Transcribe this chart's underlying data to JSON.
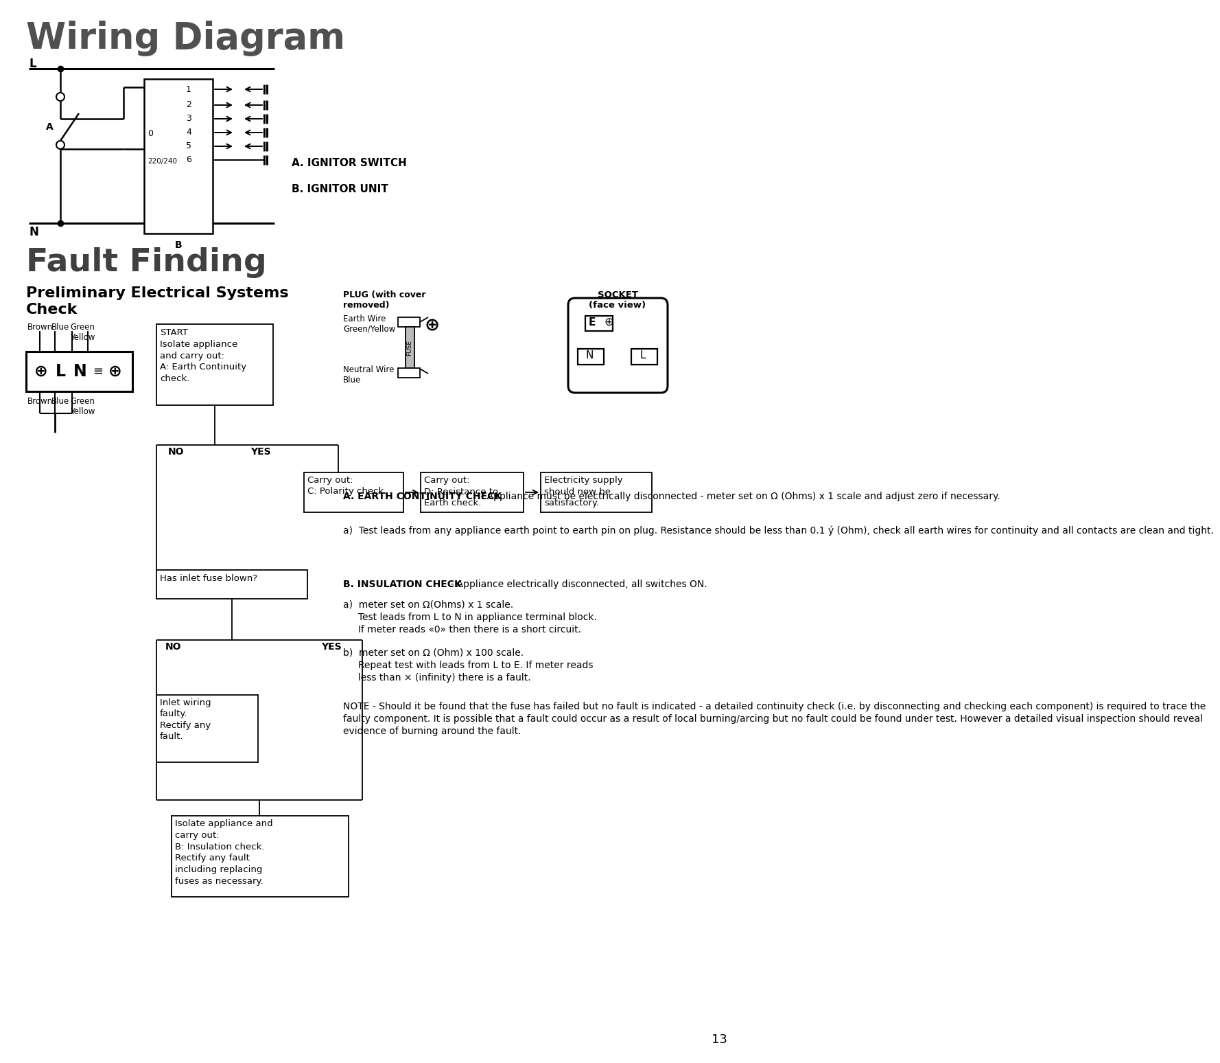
{
  "title_wiring": "Wiring Diagram",
  "title_fault": "Fault Finding",
  "subtitle_preliminary": "Preliminary Electrical Systems\nCheck",
  "ignitor_switch_label": "A. IGNITOR SWITCH",
  "ignitor_unit_label": "B. IGNITOR UNIT",
  "bg_color": "#ffffff",
  "page_number": "13",
  "start_box_text": "START\nIsolate appliance\nand carry out:\nA: Earth Continuity\ncheck.",
  "carry_out_c": "Carry out:\nC: Polarity check.",
  "carry_out_d": "Carry out:\nD: Resistance to\nEarth check.",
  "electricity_supply": "Electricity supply\nshould now be\nsatisfactory.",
  "has_inlet_fuse": "Has inlet fuse blown?",
  "inlet_wiring_box": "Inlet wiring\nfaulty.\nRectify any\nfault.",
  "isolate_box": "Isolate appliance and\ncarry out:\nB: Insulation check.\nRectify any fault\nincluding replacing\nfuses as necessary.",
  "plug_label": "PLUG (with cover\nremoved)",
  "earth_wire_label": "Earth Wire\nGreen/Yellow",
  "neutral_wire_label": "Neutral Wire\nBlue",
  "socket_label": "SOCKET\n(face view)",
  "section_a_title": "A. EARTH CONTINUITY CHECK",
  "section_a_intro": " - Appliance must be electrically disconnected - meter set on Ω (Ohms) x 1 scale and adjust zero if necessary.",
  "section_a_a": "a)  Test leads from any appliance earth point to earth pin on plug. Resistance should be less than 0.1 ý (Ohm), check all earth wires for continuity and all contacts are clean and tight.",
  "section_b_title": "B. INSULATION CHECK",
  "section_b_intro": " - Appliance electrically disconnected, all switches ON.",
  "section_b_a": "a)  meter set on Ω(Ohms) x 1 scale.\n     Test leads from L to N in appliance terminal block.\n     If meter reads «0» then there is a short circuit.",
  "section_b_b": "b)  meter set on Ω (Ohm) x 100 scale.\n     Repeat test with leads from L to E. If meter reads\n     less than × (infinity) there is a fault.",
  "note_text": "NOTE - Should it be found that the fuse has failed but no fault is indicated - a detailed continuity check (i.e. by disconnecting and checking each component) is required to trace the faulty component. It is possible that a fault could occur as a result of local burning/arcing but no fault could be found under test. However a detailed visual inspection should reveal evidence of burning around the fault.",
  "brown_label": "Brown",
  "blue_label1": "Blue",
  "green_yellow_label1": "Green\nYellow",
  "blue_label2": "Blue",
  "brown_label2": "Brown",
  "green_yellow_label2": "Green\nYellow",
  "wiring_numbers": [
    "1",
    "2",
    "3",
    "4",
    "5",
    "6"
  ],
  "wiring_label_0": "0",
  "wiring_label_220": "220/240",
  "wiring_label_B": "B",
  "wiring_label_A": "A",
  "no_label": "NO",
  "yes_label": "YES"
}
